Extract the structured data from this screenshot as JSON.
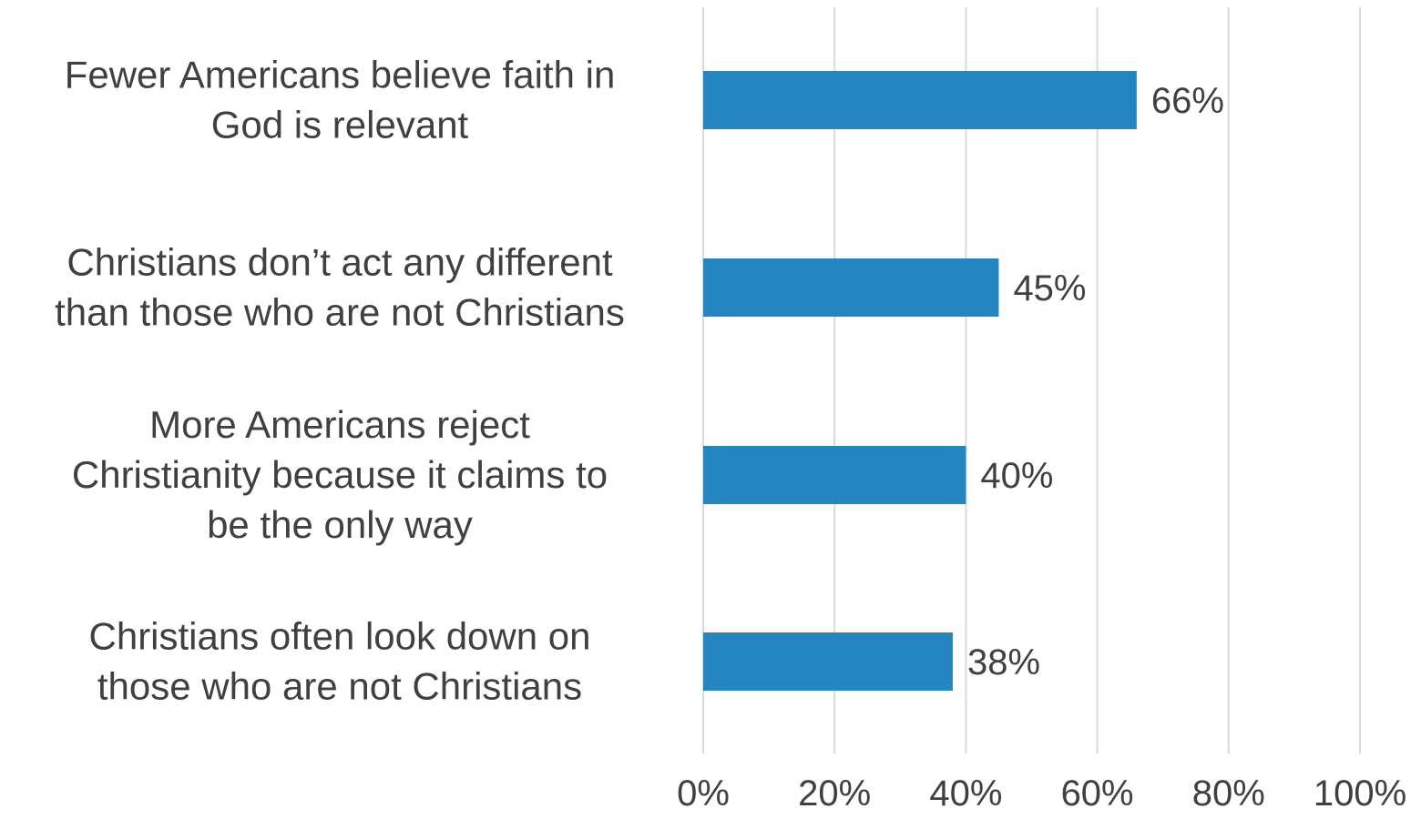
{
  "chart_data": {
    "type": "bar",
    "orientation": "horizontal",
    "categories": [
      [
        "Fewer Americans believe faith in",
        "God is relevant"
      ],
      [
        "Christians don’t act any different",
        "than those who are not Christians"
      ],
      [
        "More Americans reject",
        "Christianity because it claims to",
        "be the only way"
      ],
      [
        "Christians often look down on",
        "those who are not Christians"
      ]
    ],
    "values": [
      66,
      45,
      40,
      38
    ],
    "value_labels": [
      "66%",
      "45%",
      "40%",
      "38%"
    ],
    "xlim": [
      0,
      100
    ],
    "x_ticks": [
      0,
      20,
      40,
      60,
      80,
      100
    ],
    "x_tick_labels": [
      "0%",
      "20%",
      "40%",
      "60%",
      "80%",
      "100%"
    ],
    "grid": "vertical",
    "bar_color": "#2586bf",
    "text_color": "#404040",
    "grid_color": "#d9d9d9",
    "title": "",
    "xlabel": "",
    "ylabel": ""
  }
}
